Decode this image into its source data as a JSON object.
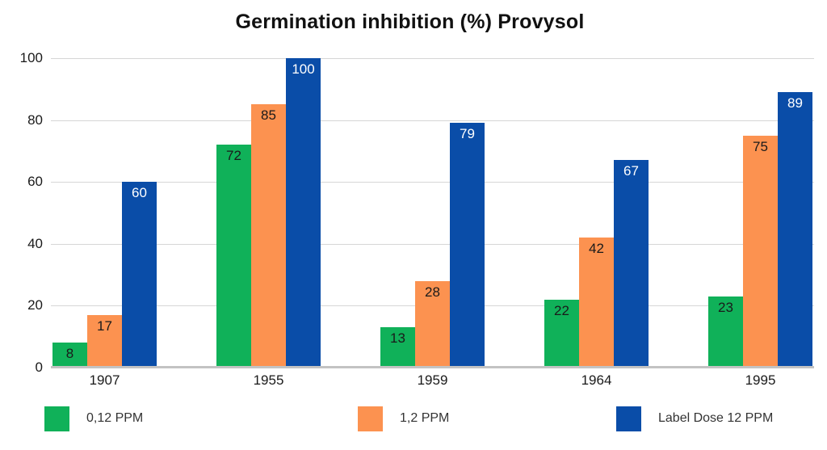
{
  "chart_data": {
    "type": "bar",
    "title": "Germination inhibition (%) Provysol",
    "categories": [
      "1907",
      "1955",
      "1959",
      "1964",
      "1995"
    ],
    "series": [
      {
        "name": "0,12 PPM",
        "color": "#10b159",
        "value_label_color": "#1a1a1a",
        "values": [
          8,
          72,
          13,
          22,
          23
        ]
      },
      {
        "name": "1,2 PPM",
        "color": "#fc9250",
        "value_label_color": "#1a1a1a",
        "values": [
          17,
          85,
          28,
          42,
          75
        ]
      },
      {
        "name": "Label Dose 12 PPM",
        "color": "#0a4da8",
        "value_label_color": "#ffffff",
        "values": [
          60,
          100,
          79,
          67,
          89
        ]
      }
    ],
    "ylim": [
      0,
      100
    ],
    "yticks": [
      0,
      20,
      40,
      60,
      80,
      100
    ],
    "grid": true,
    "value_labels": "inside-top",
    "legend_position": "bottom"
  },
  "style": {
    "gridline_color": "#d6d6d6",
    "axis_line_color": "#c3c3c3",
    "title_color": "#111111",
    "tick_label_color": "#1a1a1a",
    "legend_text_color": "#333333",
    "background": "#ffffff"
  }
}
